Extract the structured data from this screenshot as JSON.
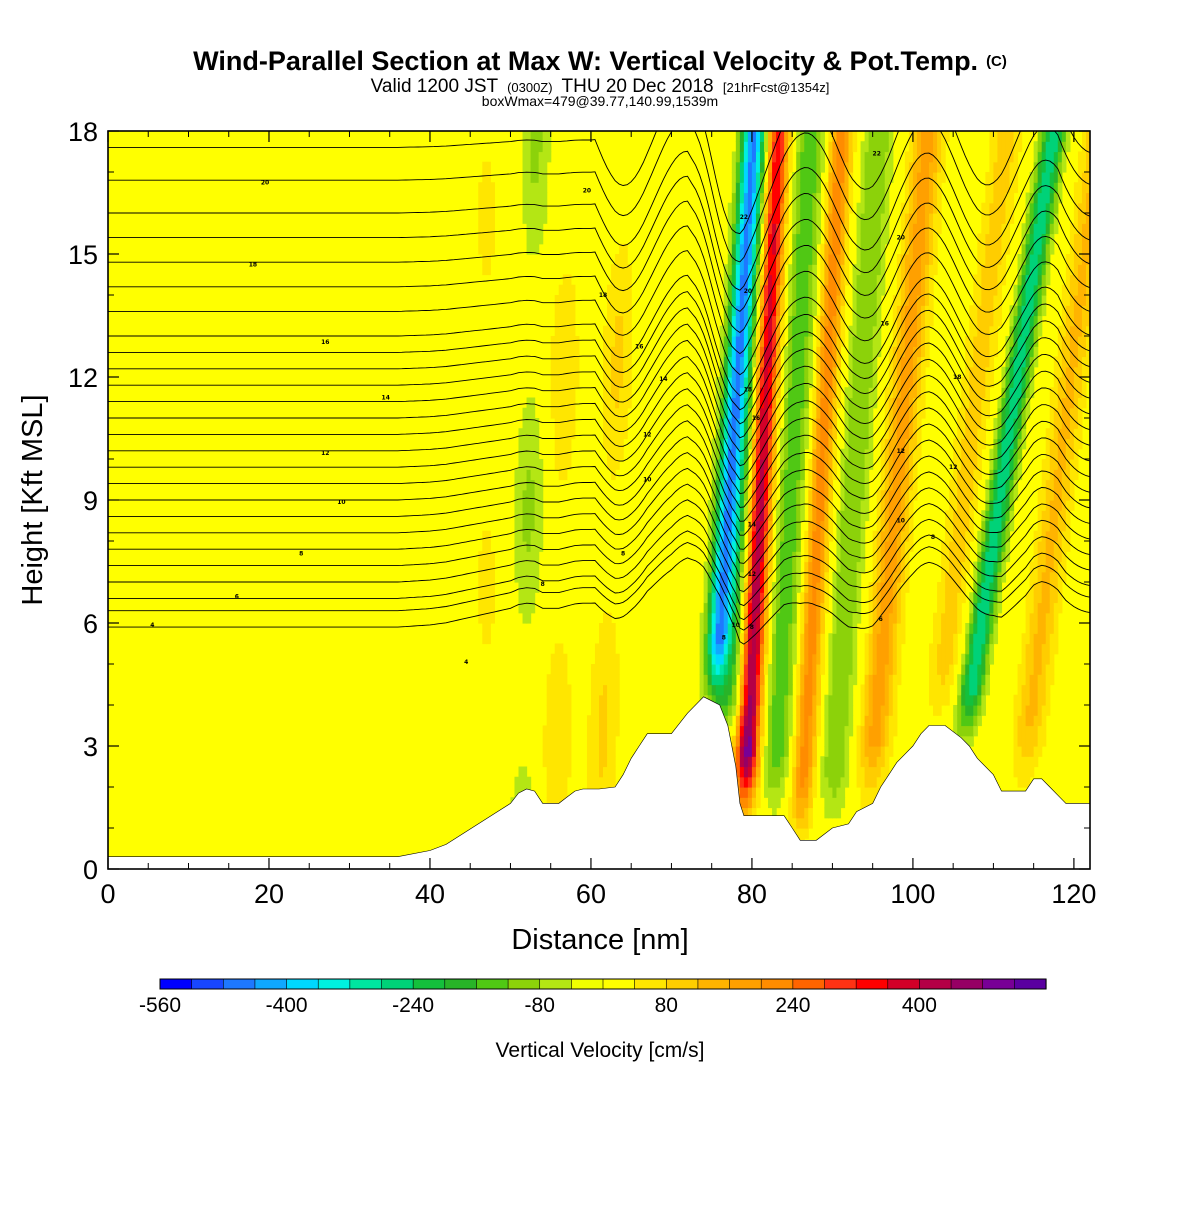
{
  "chart_data": {
    "type": "heatmap",
    "title": {
      "main": "Wind-Parallel Section at Max W: Vertical Velocity & Pot.Temp.",
      "mark": "(C)",
      "line2_a": "Valid 1200 JST",
      "line2_b": "(0300Z)",
      "line2_c": "THU 20 Dec 2018",
      "line2_d": "[21hrFcst@1354z]",
      "line3": "boxWmax=479@39.77,140.99,1539m"
    },
    "xlabel": "Distance [nm]",
    "ylabel": "Height [Kft MSL]",
    "xlim": [
      0,
      122
    ],
    "ylim": [
      0,
      18
    ],
    "x_ticks": [
      0,
      20,
      40,
      60,
      80,
      100,
      120
    ],
    "y_ticks": [
      0,
      3,
      6,
      9,
      12,
      15,
      18
    ],
    "grid": false,
    "colorbar": {
      "label": "Vertical Velocity [cm/s]",
      "min": -560,
      "max": 560,
      "step": 40,
      "labeled_values": [
        -560,
        -400,
        -240,
        -80,
        80,
        240,
        400
      ],
      "colors": [
        "#0000ff",
        "#1846ff",
        "#1e78ff",
        "#10a8ff",
        "#00d8ff",
        "#00f0e0",
        "#00e6a0",
        "#00d278",
        "#14c03c",
        "#28b428",
        "#50c814",
        "#8cd20a",
        "#b4e614",
        "#f0ff00",
        "#ffff00",
        "#ffe600",
        "#ffcd00",
        "#ffb400",
        "#ffa000",
        "#ff8c00",
        "#ff6400",
        "#ff3214",
        "#ff0000",
        "#d20028",
        "#b40046",
        "#960064",
        "#780096",
        "#5a00a0"
      ]
    },
    "terrain_kft": [
      [
        0,
        0.3
      ],
      [
        36,
        0.3
      ],
      [
        40,
        0.45
      ],
      [
        42,
        0.6
      ],
      [
        44,
        0.85
      ],
      [
        46,
        1.1
      ],
      [
        48,
        1.35
      ],
      [
        50,
        1.6
      ],
      [
        51,
        1.85
      ],
      [
        52,
        1.95
      ],
      [
        53,
        1.9
      ],
      [
        54,
        1.6
      ],
      [
        56,
        1.6
      ],
      [
        57,
        1.75
      ],
      [
        58,
        1.9
      ],
      [
        59,
        1.95
      ],
      [
        61,
        1.95
      ],
      [
        63,
        2.0
      ],
      [
        64,
        2.3
      ],
      [
        65,
        2.7
      ],
      [
        66,
        3.0
      ],
      [
        67,
        3.3
      ],
      [
        70,
        3.3
      ],
      [
        72,
        3.8
      ],
      [
        74,
        4.2
      ],
      [
        76,
        4.0
      ],
      [
        77,
        3.5
      ],
      [
        78,
        2.5
      ],
      [
        78.5,
        1.6
      ],
      [
        79,
        1.3
      ],
      [
        80,
        1.3
      ],
      [
        84,
        1.3
      ],
      [
        85,
        1.0
      ],
      [
        86,
        0.7
      ],
      [
        88,
        0.7
      ],
      [
        89,
        0.85
      ],
      [
        90,
        1.0
      ],
      [
        92,
        1.1
      ],
      [
        93,
        1.4
      ],
      [
        95,
        1.6
      ],
      [
        96,
        2.0
      ],
      [
        97,
        2.3
      ],
      [
        98,
        2.6
      ],
      [
        99,
        2.8
      ],
      [
        100,
        3.0
      ],
      [
        101,
        3.3
      ],
      [
        102,
        3.5
      ],
      [
        104,
        3.5
      ],
      [
        106,
        3.2
      ],
      [
        107,
        3.0
      ],
      [
        108,
        2.7
      ],
      [
        110,
        2.3
      ],
      [
        111,
        1.9
      ],
      [
        112,
        1.9
      ],
      [
        114,
        1.9
      ],
      [
        115,
        2.2
      ],
      [
        116,
        2.2
      ],
      [
        117,
        2.0
      ],
      [
        118,
        1.8
      ],
      [
        119,
        1.6
      ],
      [
        122,
        1.6
      ]
    ],
    "vertical_velocity_features_cm_s": [
      {
        "x_at_6kft": 76,
        "lean_nm_per_kft": 0.35,
        "peak": -420
      },
      {
        "x_at_6kft": 78.5,
        "lean_nm_per_kft": 0.35,
        "peak": -180
      },
      {
        "x_at_6kft": 80.2,
        "lean_nm_per_kft": 0.25,
        "peak": 520
      },
      {
        "x_at_6kft": 84,
        "lean_nm_per_kft": 0.28,
        "peak": -150
      },
      {
        "x_at_6kft": 87.5,
        "lean_nm_per_kft": 0.3,
        "peak": 230
      },
      {
        "x_at_6kft": 91.5,
        "lean_nm_per_kft": 0.35,
        "peak": -120
      },
      {
        "x_at_6kft": 96.5,
        "lean_nm_per_kft": 0.45,
        "peak": 180
      },
      {
        "x_at_6kft": 104.5,
        "lean_nm_per_kft": 0.6,
        "peak": 100
      },
      {
        "x_at_6kft": 108.5,
        "lean_nm_per_kft": 0.75,
        "peak": -280
      },
      {
        "x_at_6kft": 116,
        "lean_nm_per_kft": 0.6,
        "peak": 130
      },
      {
        "x_at_6kft": 62,
        "lean_nm_per_kft": 0.2,
        "peak": 90
      },
      {
        "x_at_6kft": 56,
        "lean_nm_per_kft": 0.1,
        "peak": 80
      },
      {
        "x_at_6kft": 52,
        "lean_nm_per_kft": 0.1,
        "peak": -90
      },
      {
        "x_at_6kft": 47,
        "lean_nm_per_kft": 0.0,
        "peak": 50
      },
      {
        "x_at_6kft": 36,
        "lean_nm_per_kft": 0.0,
        "peak": 30
      },
      {
        "x_at_6kft": 20,
        "lean_nm_per_kft": 0.0,
        "peak": 40
      },
      {
        "x_at_6kft": 30,
        "lean_nm_per_kft": 0.0,
        "peak": 30
      }
    ],
    "theta_contours_upstream_kft": [
      5.9,
      6.3,
      6.6,
      7.0,
      7.4,
      7.8,
      8.2,
      8.6,
      9.0,
      9.4,
      9.8,
      10.2,
      10.6,
      11.0,
      11.4,
      11.8,
      12.2,
      12.6,
      13.0,
      13.6,
      14.2,
      14.8,
      15.4,
      16.0,
      16.8,
      17.6
    ],
    "theta_contour_labels": [
      {
        "x": 5.5,
        "y": 5.95,
        "text": "4"
      },
      {
        "x": 44.5,
        "y": 5.05,
        "text": "4"
      },
      {
        "x": 16,
        "y": 6.65,
        "text": "6"
      },
      {
        "x": 96,
        "y": 6.1,
        "text": "6"
      },
      {
        "x": 24,
        "y": 7.7,
        "text": "8"
      },
      {
        "x": 54,
        "y": 6.95,
        "text": "8"
      },
      {
        "x": 64,
        "y": 7.7,
        "text": "8"
      },
      {
        "x": 102.5,
        "y": 8.1,
        "text": "8"
      },
      {
        "x": 29,
        "y": 8.95,
        "text": "10"
      },
      {
        "x": 67,
        "y": 9.5,
        "text": "10"
      },
      {
        "x": 98.5,
        "y": 8.5,
        "text": "10"
      },
      {
        "x": 27,
        "y": 10.15,
        "text": "12"
      },
      {
        "x": 67,
        "y": 10.6,
        "text": "12"
      },
      {
        "x": 98.5,
        "y": 10.2,
        "text": "12"
      },
      {
        "x": 105,
        "y": 9.8,
        "text": "12"
      },
      {
        "x": 34.5,
        "y": 11.5,
        "text": "14"
      },
      {
        "x": 69,
        "y": 11.95,
        "text": "14"
      },
      {
        "x": 27,
        "y": 12.85,
        "text": "16"
      },
      {
        "x": 66,
        "y": 12.75,
        "text": "16"
      },
      {
        "x": 96.5,
        "y": 13.3,
        "text": "16"
      },
      {
        "x": 18,
        "y": 14.75,
        "text": "18"
      },
      {
        "x": 61.5,
        "y": 14.0,
        "text": "18"
      },
      {
        "x": 19.5,
        "y": 16.75,
        "text": "20"
      },
      {
        "x": 59.5,
        "y": 16.55,
        "text": "20"
      },
      {
        "x": 98.5,
        "y": 15.4,
        "text": "20"
      },
      {
        "x": 95.5,
        "y": 17.45,
        "text": "22"
      },
      {
        "x": 105.5,
        "y": 12.0,
        "text": "18"
      },
      {
        "x": 76.5,
        "y": 5.65,
        "text": "8"
      },
      {
        "x": 78,
        "y": 5.95,
        "text": "10"
      },
      {
        "x": 80,
        "y": 5.9,
        "text": "8"
      },
      {
        "x": 80,
        "y": 7.2,
        "text": "12"
      },
      {
        "x": 80,
        "y": 8.4,
        "text": "14"
      },
      {
        "x": 80.5,
        "y": 11.0,
        "text": "16"
      },
      {
        "x": 79.5,
        "y": 11.7,
        "text": "18"
      },
      {
        "x": 79.5,
        "y": 14.1,
        "text": "20"
      },
      {
        "x": 79,
        "y": 15.9,
        "text": "22"
      }
    ]
  }
}
